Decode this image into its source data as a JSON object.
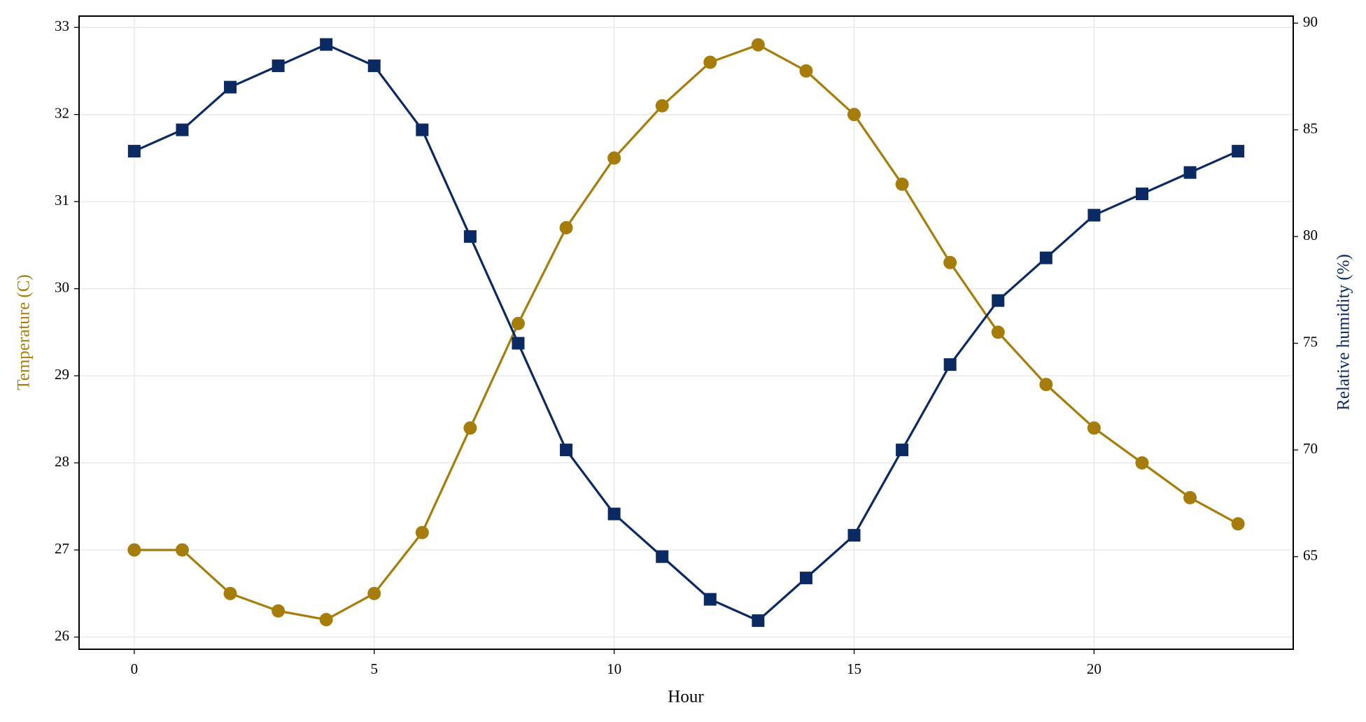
{
  "chart_data": {
    "type": "line",
    "x_label": "Hour",
    "y_label": "Temperature (C)",
    "y2_label": "Relative humidity (%)",
    "x": [
      0,
      1,
      2,
      3,
      4,
      5,
      6,
      7,
      8,
      9,
      10,
      11,
      12,
      13,
      14,
      15,
      16,
      17,
      18,
      19,
      20,
      21,
      22,
      23
    ],
    "series": [
      {
        "name": "Temperature (C)",
        "color": "#a67c0b",
        "marker": "circle",
        "values": [
          27.0,
          27.0,
          26.5,
          26.3,
          26.2,
          26.5,
          27.2,
          28.4,
          29.6,
          30.7,
          31.5,
          32.1,
          32.6,
          32.8,
          32.5,
          32.0,
          31.2,
          30.3,
          29.5,
          28.9,
          28.4,
          28.0,
          27.6,
          27.3
        ]
      },
      {
        "name": "Relative humidity (%)",
        "color": "#0b2a63",
        "marker": "square",
        "axis": "y2",
        "values": [
          84,
          85,
          87,
          88,
          89,
          88,
          85,
          80,
          75,
          70,
          67,
          65,
          63,
          62,
          64,
          66,
          70,
          74,
          77,
          79,
          81,
          82,
          83,
          84
        ]
      }
    ],
    "xlim": [
      -1.15,
      24.15
    ],
    "xticks": [
      0,
      5,
      10,
      15,
      20
    ],
    "ylim": [
      25.86,
      33.13
    ],
    "yticks": [
      26,
      27,
      28,
      29,
      30,
      31,
      32,
      33
    ],
    "y2lim": [
      60.66,
      90.33
    ],
    "y2ticks": [
      65,
      70,
      75,
      80,
      85,
      90
    ],
    "grid": true
  }
}
